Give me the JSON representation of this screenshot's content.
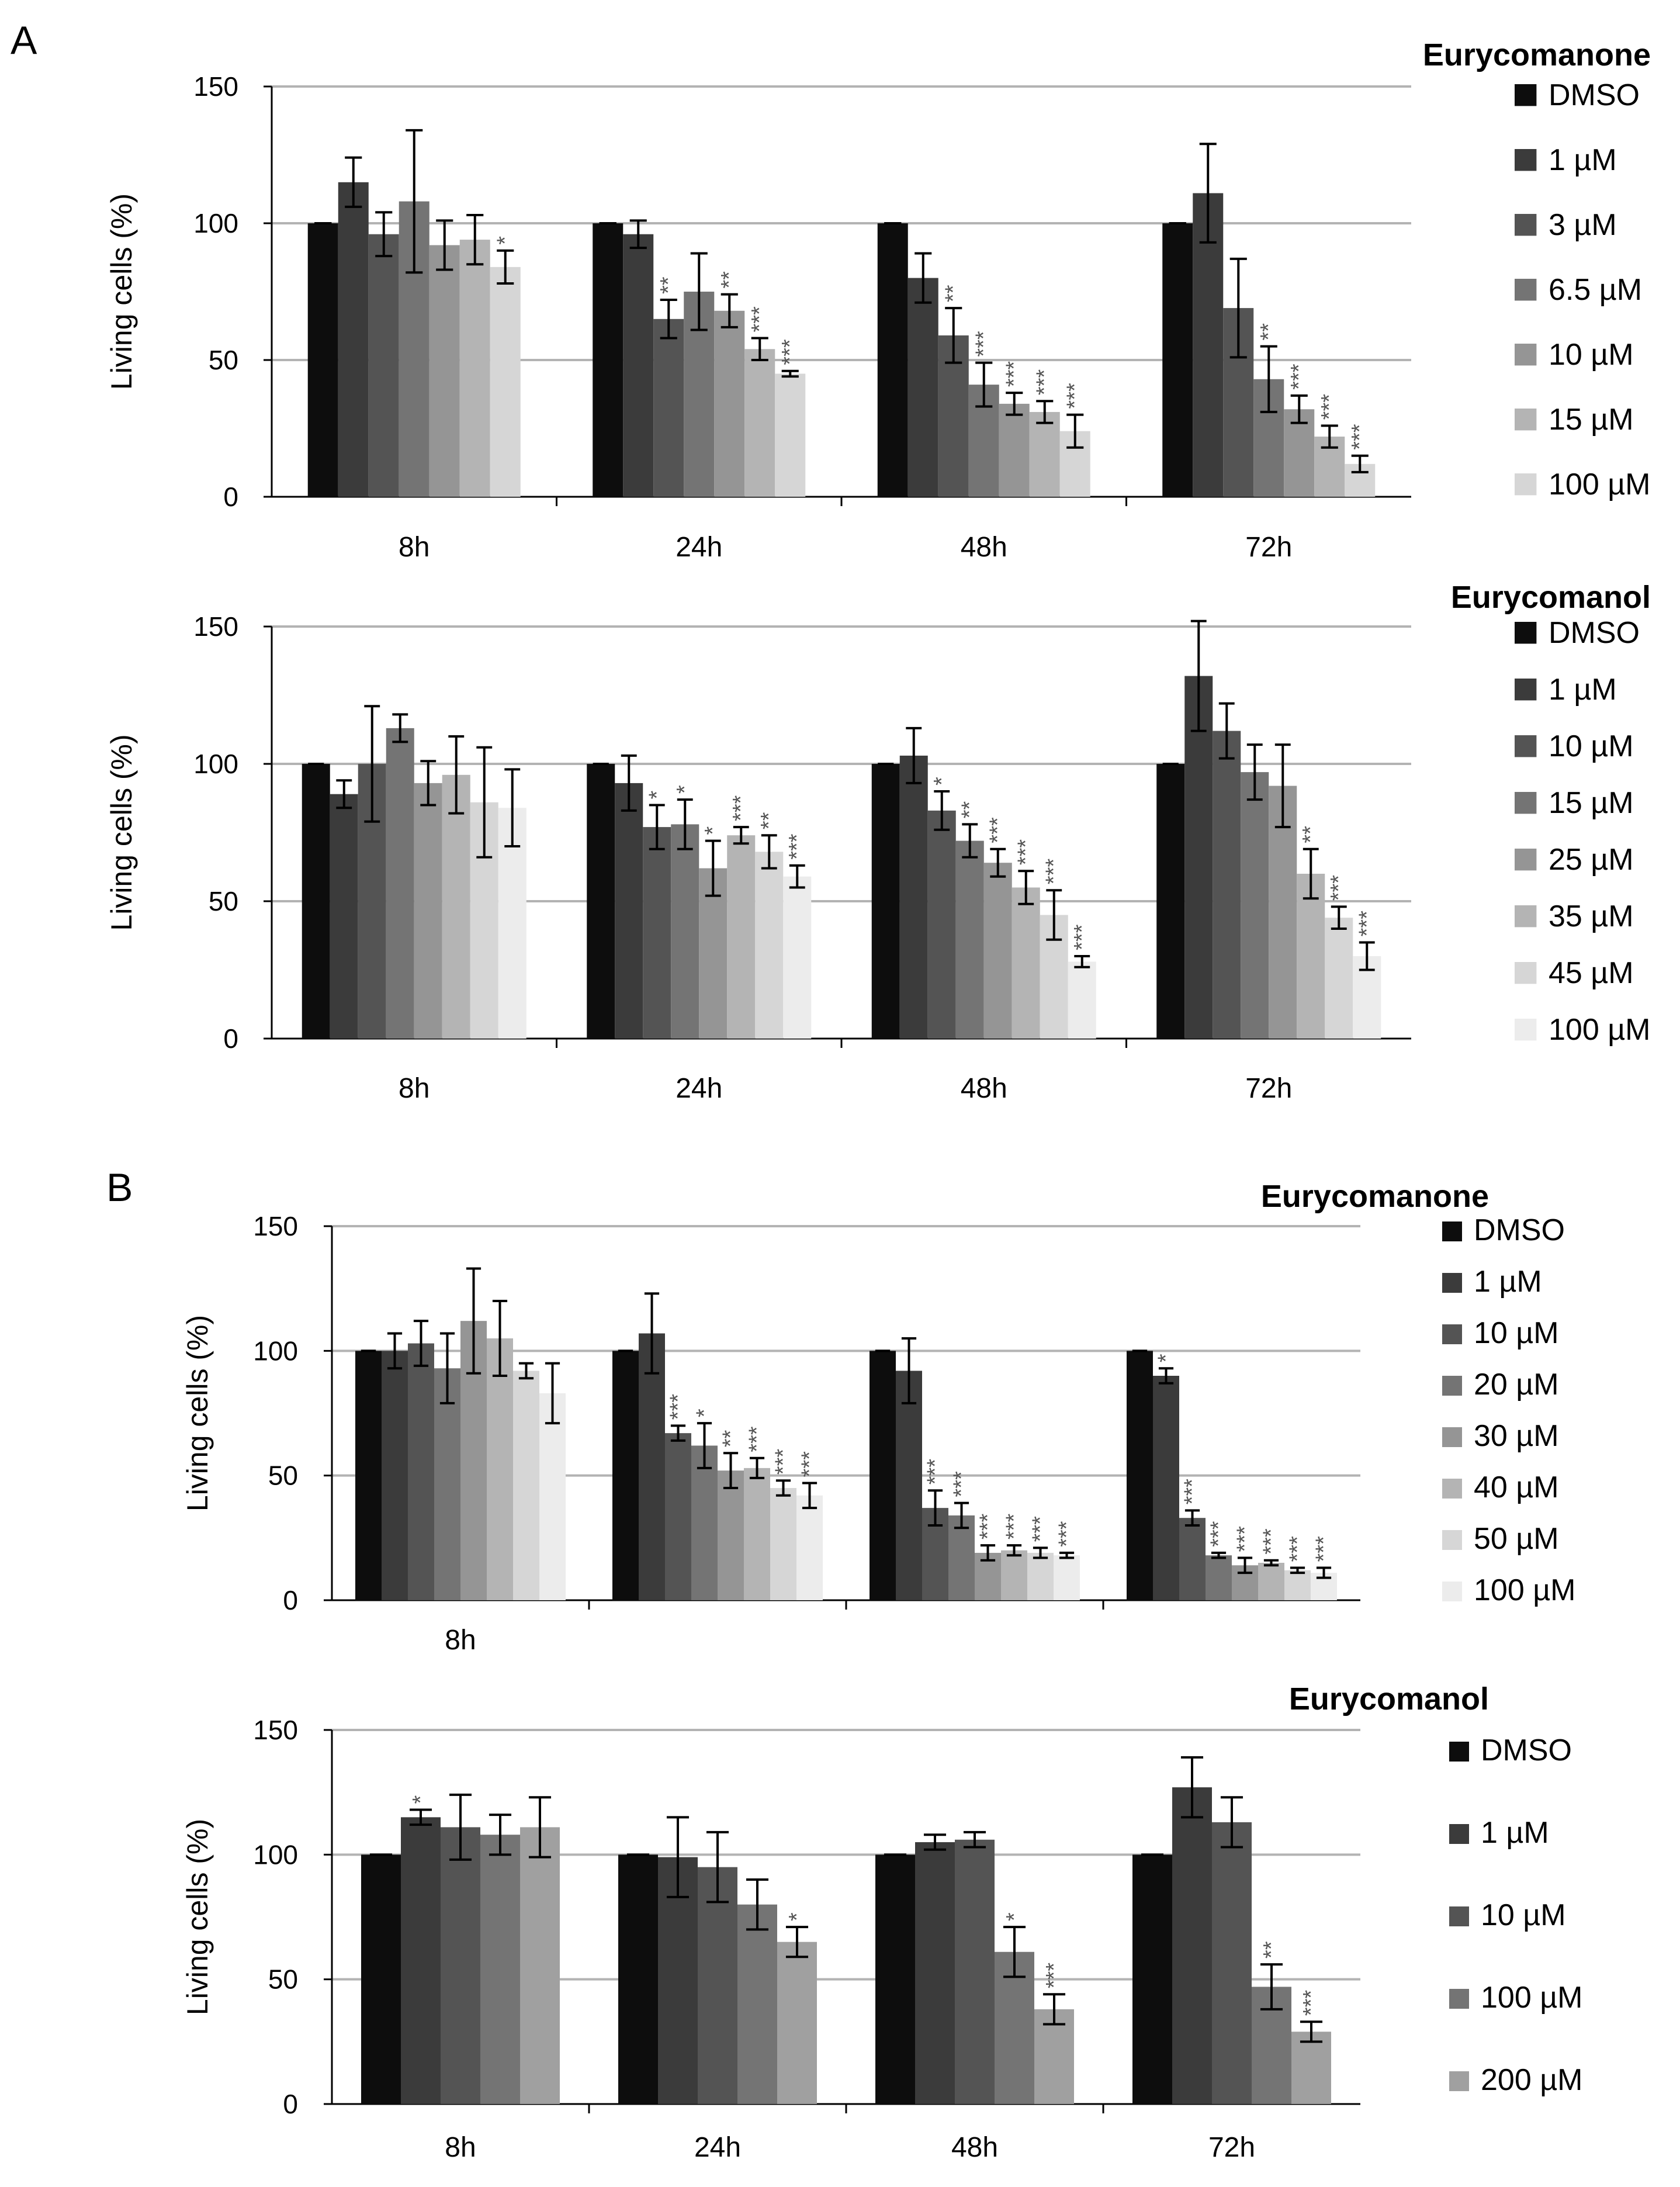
{
  "figure": {
    "panel_labels": [
      "A",
      "B"
    ]
  },
  "chart_data": [
    {
      "type": "bar",
      "panel": "A",
      "title": "Eurycomanone",
      "xlabel": "",
      "ylabel": "Living cells (%)",
      "ylim": [
        0,
        150
      ],
      "yticks": [
        0,
        50,
        100,
        150
      ],
      "gridlines": true,
      "legend_position": "right",
      "categories": [
        "8h",
        "24h",
        "48h",
        "72h"
      ],
      "series": [
        {
          "name": "DMSO",
          "color": "#0d0d0d",
          "values": [
            100,
            100,
            100,
            100
          ],
          "errors": [
            0,
            0,
            0,
            0
          ],
          "sig": [
            "",
            "",
            "",
            ""
          ]
        },
        {
          "name": "1 µM",
          "color": "#3b3b3b",
          "values": [
            115,
            96,
            80,
            111
          ],
          "errors": [
            9,
            5,
            9,
            18
          ],
          "sig": [
            "",
            "",
            "",
            ""
          ]
        },
        {
          "name": "3 µM",
          "color": "#545454",
          "values": [
            96,
            65,
            59,
            69
          ],
          "errors": [
            8,
            7,
            10,
            18
          ],
          "sig": [
            "",
            "**",
            "**",
            ""
          ]
        },
        {
          "name": "6.5 µM",
          "color": "#747474",
          "values": [
            108,
            75,
            41,
            43
          ],
          "errors": [
            26,
            14,
            8,
            12
          ],
          "sig": [
            "",
            "",
            "***",
            "**"
          ]
        },
        {
          "name": "10 µM",
          "color": "#959595",
          "values": [
            92,
            68,
            34,
            32
          ],
          "errors": [
            9,
            6,
            4,
            5
          ],
          "sig": [
            "",
            "**",
            "***",
            "***"
          ]
        },
        {
          "name": "15 µM",
          "color": "#b4b4b4",
          "values": [
            94,
            54,
            31,
            22
          ],
          "errors": [
            9,
            4,
            4,
            4
          ],
          "sig": [
            "",
            "***",
            "***",
            "***"
          ]
        },
        {
          "name": "100 µM",
          "color": "#d6d6d6",
          "values": [
            84,
            45,
            24,
            12
          ],
          "errors": [
            6,
            1,
            6,
            3
          ],
          "sig": [
            "*",
            "***",
            "***",
            "***"
          ]
        }
      ]
    },
    {
      "type": "bar",
      "panel": "A",
      "title": "Eurycomanol",
      "xlabel": "",
      "ylabel": "Living cells (%)",
      "ylim": [
        0,
        150
      ],
      "yticks": [
        0,
        50,
        100,
        150
      ],
      "gridlines": true,
      "legend_position": "right",
      "categories": [
        "8h",
        "24h",
        "48h",
        "72h"
      ],
      "series": [
        {
          "name": "DMSO",
          "color": "#0d0d0d",
          "values": [
            100,
            100,
            100,
            100
          ],
          "errors": [
            0,
            0,
            0,
            0
          ],
          "sig": [
            "",
            "",
            "",
            ""
          ]
        },
        {
          "name": "1 µM",
          "color": "#3b3b3b",
          "values": [
            89,
            93,
            103,
            132
          ],
          "errors": [
            5,
            10,
            10,
            20
          ],
          "sig": [
            "",
            "",
            "",
            ""
          ]
        },
        {
          "name": "10 µM",
          "color": "#545454",
          "values": [
            100,
            77,
            83,
            112
          ],
          "errors": [
            21,
            8,
            7,
            10
          ],
          "sig": [
            "",
            "*",
            "*",
            ""
          ]
        },
        {
          "name": "15 µM",
          "color": "#747474",
          "values": [
            113,
            78,
            72,
            97
          ],
          "errors": [
            5,
            9,
            6,
            10
          ],
          "sig": [
            "",
            "*",
            "**",
            ""
          ]
        },
        {
          "name": "25 µM",
          "color": "#959595",
          "values": [
            93,
            62,
            64,
            92
          ],
          "errors": [
            8,
            10,
            5,
            15
          ],
          "sig": [
            "",
            "*",
            "***",
            ""
          ]
        },
        {
          "name": "35 µM",
          "color": "#b4b4b4",
          "values": [
            96,
            74,
            55,
            60
          ],
          "errors": [
            14,
            3,
            6,
            9
          ],
          "sig": [
            "",
            "***",
            "***",
            "**"
          ]
        },
        {
          "name": "45 µM",
          "color": "#d6d6d6",
          "values": [
            86,
            68,
            45,
            44
          ],
          "errors": [
            20,
            6,
            9,
            4
          ],
          "sig": [
            "",
            "**",
            "***",
            "***"
          ]
        },
        {
          "name": "100 µM",
          "color": "#ececec",
          "values": [
            84,
            59,
            28,
            30
          ],
          "errors": [
            14,
            4,
            2,
            5
          ],
          "sig": [
            "",
            "***",
            "***",
            "***"
          ]
        }
      ]
    },
    {
      "type": "bar",
      "panel": "B",
      "title": "Eurycomanone",
      "xlabel": "",
      "ylabel": "Living cells (%)",
      "ylim": [
        0,
        150
      ],
      "yticks": [
        0,
        50,
        100,
        150
      ],
      "gridlines": true,
      "legend_position": "right",
      "categories": [
        "8h",
        "",
        "",
        ""
      ],
      "series": [
        {
          "name": "DMSO",
          "color": "#0d0d0d",
          "values": [
            100,
            100,
            100,
            100
          ],
          "errors": [
            0,
            0,
            0,
            0
          ],
          "sig": [
            "",
            "",
            "",
            ""
          ]
        },
        {
          "name": "1 µM",
          "color": "#3b3b3b",
          "values": [
            100,
            107,
            92,
            90
          ],
          "errors": [
            7,
            16,
            13,
            3
          ],
          "sig": [
            "",
            "",
            "",
            "*"
          ]
        },
        {
          "name": "10 µM",
          "color": "#545454",
          "values": [
            103,
            67,
            37,
            33
          ],
          "errors": [
            9,
            3,
            7,
            3
          ],
          "sig": [
            "",
            "***",
            "***",
            "***"
          ]
        },
        {
          "name": "20 µM",
          "color": "#747474",
          "values": [
            93,
            62,
            34,
            18
          ],
          "errors": [
            14,
            9,
            5,
            1
          ],
          "sig": [
            "",
            "*",
            "***",
            "***"
          ]
        },
        {
          "name": "30 µM",
          "color": "#959595",
          "values": [
            112,
            52,
            19,
            14
          ],
          "errors": [
            21,
            7,
            3,
            3
          ],
          "sig": [
            "",
            "**",
            "***",
            "***"
          ]
        },
        {
          "name": "40 µM",
          "color": "#b4b4b4",
          "values": [
            105,
            53,
            20,
            15
          ],
          "errors": [
            15,
            4,
            2,
            1
          ],
          "sig": [
            "",
            "***",
            "***",
            "***"
          ]
        },
        {
          "name": "50 µM",
          "color": "#d6d6d6",
          "values": [
            92,
            45,
            19,
            12
          ],
          "errors": [
            3,
            3,
            2,
            1
          ],
          "sig": [
            "",
            "***",
            "***",
            "***"
          ]
        },
        {
          "name": "100 µM",
          "color": "#ececec",
          "values": [
            83,
            42,
            18,
            11
          ],
          "errors": [
            12,
            5,
            1,
            2
          ],
          "sig": [
            "",
            "***",
            "***",
            "***"
          ]
        }
      ]
    },
    {
      "type": "bar",
      "panel": "B",
      "title": "Eurycomanol",
      "xlabel": "",
      "ylabel": "Living cells (%)",
      "ylim": [
        0,
        150
      ],
      "yticks": [
        0,
        50,
        100,
        150
      ],
      "gridlines": true,
      "legend_position": "right",
      "categories": [
        "8h",
        "24h",
        "48h",
        "72h"
      ],
      "series": [
        {
          "name": "DMSO",
          "color": "#0d0d0d",
          "values": [
            100,
            100,
            100,
            100
          ],
          "errors": [
            0,
            0,
            0,
            0
          ],
          "sig": [
            "",
            "",
            "",
            ""
          ]
        },
        {
          "name": "1 µM",
          "color": "#3b3b3b",
          "values": [
            115,
            99,
            105,
            127
          ],
          "errors": [
            3,
            16,
            3,
            12
          ],
          "sig": [
            "*",
            "",
            "",
            ""
          ]
        },
        {
          "name": "10 µM",
          "color": "#545454",
          "values": [
            111,
            95,
            106,
            113
          ],
          "errors": [
            13,
            14,
            3,
            10
          ],
          "sig": [
            "",
            "",
            "",
            ""
          ]
        },
        {
          "name": "100 µM",
          "color": "#747474",
          "values": [
            108,
            80,
            61,
            47
          ],
          "errors": [
            8,
            10,
            10,
            9
          ],
          "sig": [
            "",
            "",
            "*",
            "**"
          ]
        },
        {
          "name": "200 µM",
          "color": "#a0a0a0",
          "values": [
            111,
            65,
            38,
            29
          ],
          "errors": [
            12,
            6,
            6,
            4
          ],
          "sig": [
            "",
            "*",
            "***",
            "***"
          ]
        }
      ]
    }
  ]
}
